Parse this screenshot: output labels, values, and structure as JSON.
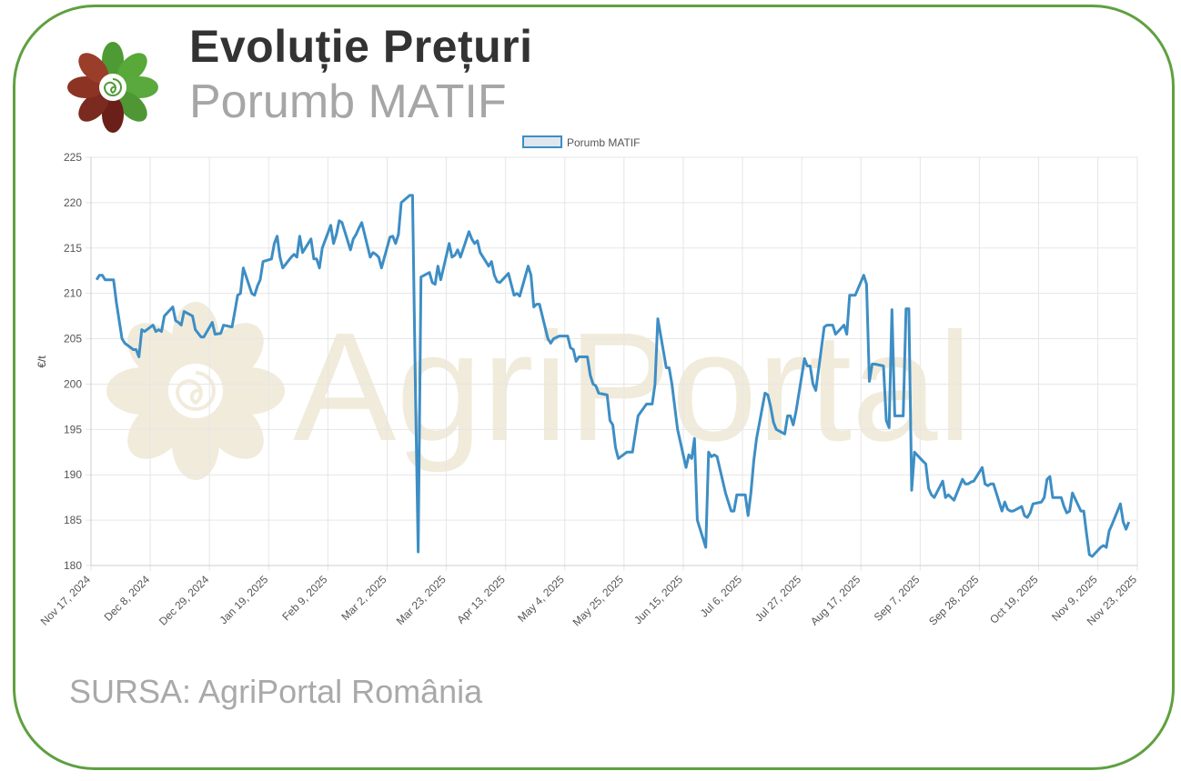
{
  "header": {
    "title": "Evoluție Prețuri",
    "subtitle": "Porumb MATIF"
  },
  "footer": {
    "source": "SURSA: AgriPortal România"
  },
  "watermark": {
    "text": "AgriPortal"
  },
  "colors": {
    "frame": "#5fa040",
    "line": "#3d8ec4",
    "legend_fill": "#dfe6ee",
    "grid": "#e6e6e6",
    "watermark": "#efe8d5"
  },
  "chart_data": {
    "type": "line",
    "ylabel": "€/t",
    "ylim": [
      180,
      225
    ],
    "yticks": [
      180,
      185,
      190,
      195,
      200,
      205,
      210,
      215,
      220,
      225
    ],
    "xlim": [
      "2024-11-17",
      "2025-11-23"
    ],
    "xticks": [
      "Nov 17, 2024",
      "Dec 8, 2024",
      "Dec 29, 2024",
      "Jan 19, 2025",
      "Feb 9, 2025",
      "Mar 2, 2025",
      "Mar 23, 2025",
      "Apr 13, 2025",
      "May 4, 2025",
      "May 25, 2025",
      "Jun 15, 2025",
      "Jul 6, 2025",
      "Jul 27, 2025",
      "Aug 17, 2025",
      "Sep 7, 2025",
      "Sep 28, 2025",
      "Oct 19, 2025",
      "Nov 9, 2025",
      "Nov 23, 2025"
    ],
    "grid": true,
    "legend": "top-center",
    "series": [
      {
        "name": "Porumb MATIF",
        "points": [
          [
            "2024-11-19",
            211.5
          ],
          [
            "2024-11-20",
            212
          ],
          [
            "2024-11-21",
            212
          ],
          [
            "2024-11-22",
            211.5
          ],
          [
            "2024-11-25",
            211.5
          ],
          [
            "2024-11-26",
            209
          ],
          [
            "2024-11-27",
            207
          ],
          [
            "2024-11-28",
            205
          ],
          [
            "2024-11-29",
            204.5
          ],
          [
            "2024-12-02",
            203.8
          ],
          [
            "2024-12-03",
            203.8
          ],
          [
            "2024-12-04",
            203
          ],
          [
            "2024-12-05",
            206
          ],
          [
            "2024-12-06",
            205.8
          ],
          [
            "2024-12-09",
            206.5
          ],
          [
            "2024-12-10",
            205.8
          ],
          [
            "2024-12-11",
            206
          ],
          [
            "2024-12-12",
            205.8
          ],
          [
            "2024-12-13",
            207.5
          ],
          [
            "2024-12-16",
            208.5
          ],
          [
            "2024-12-17",
            207
          ],
          [
            "2024-12-18",
            206.8
          ],
          [
            "2024-12-19",
            206.5
          ],
          [
            "2024-12-20",
            208
          ],
          [
            "2024-12-23",
            207.5
          ],
          [
            "2024-12-24",
            206
          ],
          [
            "2024-12-26",
            205.2
          ],
          [
            "2024-12-27",
            205.2
          ],
          [
            "2024-12-30",
            206.8
          ],
          [
            "2024-12-31",
            205.5
          ],
          [
            "2025-01-02",
            205.6
          ],
          [
            "2025-01-03",
            206.5
          ],
          [
            "2025-01-06",
            206.3
          ],
          [
            "2025-01-07",
            208
          ],
          [
            "2025-01-08",
            209.8
          ],
          [
            "2025-01-09",
            210
          ],
          [
            "2025-01-10",
            212.8
          ],
          [
            "2025-01-13",
            210
          ],
          [
            "2025-01-14",
            209.8
          ],
          [
            "2025-01-15",
            210.8
          ],
          [
            "2025-01-16",
            211.5
          ],
          [
            "2025-01-17",
            213.5
          ],
          [
            "2025-01-20",
            213.8
          ],
          [
            "2025-01-21",
            215.5
          ],
          [
            "2025-01-22",
            216.3
          ],
          [
            "2025-01-23",
            214
          ],
          [
            "2025-01-24",
            212.8
          ],
          [
            "2025-01-27",
            214
          ],
          [
            "2025-01-28",
            214.3
          ],
          [
            "2025-01-29",
            214
          ],
          [
            "2025-01-30",
            216.3
          ],
          [
            "2025-01-31",
            214.5
          ],
          [
            "2025-02-03",
            216
          ],
          [
            "2025-02-04",
            213.8
          ],
          [
            "2025-02-05",
            213.8
          ],
          [
            "2025-02-06",
            212.8
          ],
          [
            "2025-02-07",
            215
          ],
          [
            "2025-02-10",
            217.5
          ],
          [
            "2025-02-11",
            215.5
          ],
          [
            "2025-02-12",
            216.5
          ],
          [
            "2025-02-13",
            218
          ],
          [
            "2025-02-14",
            217.8
          ],
          [
            "2025-02-17",
            214.8
          ],
          [
            "2025-02-18",
            216
          ],
          [
            "2025-02-19",
            216.5
          ],
          [
            "2025-02-20",
            217.2
          ],
          [
            "2025-02-21",
            217.8
          ],
          [
            "2025-02-24",
            214
          ],
          [
            "2025-02-25",
            214.5
          ],
          [
            "2025-02-26",
            214.3
          ],
          [
            "2025-02-27",
            214
          ],
          [
            "2025-02-28",
            212.8
          ],
          [
            "2025-03-03",
            216.2
          ],
          [
            "2025-03-04",
            216.3
          ],
          [
            "2025-03-05",
            215.5
          ],
          [
            "2025-03-06",
            216.5
          ],
          [
            "2025-03-07",
            220
          ],
          [
            "2025-03-10",
            220.8
          ],
          [
            "2025-03-11",
            220.8
          ],
          [
            "2025-03-12",
            200
          ],
          [
            "2025-03-13",
            181.5
          ],
          [
            "2025-03-14",
            211.8
          ],
          [
            "2025-03-17",
            212.3
          ],
          [
            "2025-03-18",
            211.2
          ],
          [
            "2025-03-19",
            211
          ],
          [
            "2025-03-20",
            213
          ],
          [
            "2025-03-21",
            211.5
          ],
          [
            "2025-03-24",
            215.5
          ],
          [
            "2025-03-25",
            214
          ],
          [
            "2025-03-26",
            214.2
          ],
          [
            "2025-03-27",
            214.8
          ],
          [
            "2025-03-28",
            214
          ],
          [
            "2025-03-31",
            216.8
          ],
          [
            "2025-04-01",
            216
          ],
          [
            "2025-04-02",
            215.5
          ],
          [
            "2025-04-03",
            215.8
          ],
          [
            "2025-04-04",
            214.5
          ],
          [
            "2025-04-07",
            213
          ],
          [
            "2025-04-08",
            213.5
          ],
          [
            "2025-04-09",
            212
          ],
          [
            "2025-04-10",
            211.3
          ],
          [
            "2025-04-11",
            211.2
          ],
          [
            "2025-04-14",
            212.2
          ],
          [
            "2025-04-15",
            211
          ],
          [
            "2025-04-16",
            209.8
          ],
          [
            "2025-04-17",
            210
          ],
          [
            "2025-04-18",
            209.7
          ],
          [
            "2025-04-21",
            213
          ],
          [
            "2025-04-22",
            212
          ],
          [
            "2025-04-23",
            208.5
          ],
          [
            "2025-04-24",
            208.8
          ],
          [
            "2025-04-25",
            208.8
          ],
          [
            "2025-04-28",
            205
          ],
          [
            "2025-04-29",
            204.5
          ],
          [
            "2025-04-30",
            205
          ],
          [
            "2025-05-02",
            205.3
          ],
          [
            "2025-05-05",
            205.3
          ],
          [
            "2025-05-06",
            204
          ],
          [
            "2025-05-07",
            203.8
          ],
          [
            "2025-05-08",
            202.5
          ],
          [
            "2025-05-09",
            203
          ],
          [
            "2025-05-12",
            203
          ],
          [
            "2025-05-13",
            201
          ],
          [
            "2025-05-14",
            200
          ],
          [
            "2025-05-15",
            199.8
          ],
          [
            "2025-05-16",
            199
          ],
          [
            "2025-05-19",
            198.8
          ],
          [
            "2025-05-20",
            196
          ],
          [
            "2025-05-21",
            195.5
          ],
          [
            "2025-05-22",
            193
          ],
          [
            "2025-05-23",
            191.8
          ],
          [
            "2025-05-26",
            192.5
          ],
          [
            "2025-05-27",
            192.5
          ],
          [
            "2025-05-28",
            192.5
          ],
          [
            "2025-05-29",
            194.5
          ],
          [
            "2025-05-30",
            196.5
          ],
          [
            "2025-06-02",
            197.8
          ],
          [
            "2025-06-03",
            197.8
          ],
          [
            "2025-06-04",
            197.8
          ],
          [
            "2025-06-05",
            200
          ],
          [
            "2025-06-06",
            207.2
          ],
          [
            "2025-06-09",
            201.8
          ],
          [
            "2025-06-10",
            201.8
          ],
          [
            "2025-06-11",
            200
          ],
          [
            "2025-06-12",
            197.5
          ],
          [
            "2025-06-13",
            195
          ],
          [
            "2025-06-16",
            190.8
          ],
          [
            "2025-06-17",
            192.2
          ],
          [
            "2025-06-18",
            191.8
          ],
          [
            "2025-06-19",
            194
          ],
          [
            "2025-06-20",
            185
          ],
          [
            "2025-06-23",
            182
          ],
          [
            "2025-06-24",
            192.5
          ],
          [
            "2025-06-25",
            192
          ],
          [
            "2025-06-26",
            192.2
          ],
          [
            "2025-06-27",
            192
          ],
          [
            "2025-06-30",
            188
          ],
          [
            "2025-07-01",
            187
          ],
          [
            "2025-07-02",
            186
          ],
          [
            "2025-07-03",
            186
          ],
          [
            "2025-07-04",
            187.8
          ],
          [
            "2025-07-07",
            187.8
          ],
          [
            "2025-07-08",
            185.5
          ],
          [
            "2025-07-09",
            188
          ],
          [
            "2025-07-10",
            191.5
          ],
          [
            "2025-07-11",
            194
          ],
          [
            "2025-07-14",
            199
          ],
          [
            "2025-07-15",
            198.8
          ],
          [
            "2025-07-16",
            197.5
          ],
          [
            "2025-07-17",
            195.8
          ],
          [
            "2025-07-18",
            195
          ],
          [
            "2025-07-21",
            194.5
          ],
          [
            "2025-07-22",
            196.5
          ],
          [
            "2025-07-23",
            196.5
          ],
          [
            "2025-07-24",
            195.5
          ],
          [
            "2025-07-25",
            197
          ],
          [
            "2025-07-28",
            202.8
          ],
          [
            "2025-07-29",
            202
          ],
          [
            "2025-07-30",
            202
          ],
          [
            "2025-07-31",
            200
          ],
          [
            "2025-08-01",
            199.3
          ],
          [
            "2025-08-04",
            206.3
          ],
          [
            "2025-08-05",
            206.5
          ],
          [
            "2025-08-06",
            206.5
          ],
          [
            "2025-08-07",
            206.5
          ],
          [
            "2025-08-08",
            205.5
          ],
          [
            "2025-08-11",
            206.5
          ],
          [
            "2025-08-12",
            205.5
          ],
          [
            "2025-08-13",
            209.8
          ],
          [
            "2025-08-14",
            209.8
          ],
          [
            "2025-08-15",
            209.8
          ],
          [
            "2025-08-18",
            212
          ],
          [
            "2025-08-19",
            211
          ],
          [
            "2025-08-20",
            200.3
          ],
          [
            "2025-08-21",
            202.2
          ],
          [
            "2025-08-22",
            202.2
          ],
          [
            "2025-08-25",
            202
          ],
          [
            "2025-08-26",
            196
          ],
          [
            "2025-08-27",
            195.2
          ],
          [
            "2025-08-28",
            208.2
          ],
          [
            "2025-08-29",
            196.5
          ],
          [
            "2025-09-01",
            196.5
          ],
          [
            "2025-09-02",
            208.3
          ],
          [
            "2025-09-03",
            208.3
          ],
          [
            "2025-09-04",
            188.3
          ],
          [
            "2025-09-05",
            192.5
          ],
          [
            "2025-09-08",
            191.5
          ],
          [
            "2025-09-09",
            191.2
          ],
          [
            "2025-09-10",
            188.5
          ],
          [
            "2025-09-11",
            187.8
          ],
          [
            "2025-09-12",
            187.5
          ],
          [
            "2025-09-15",
            189.3
          ],
          [
            "2025-09-16",
            187.5
          ],
          [
            "2025-09-17",
            187.8
          ],
          [
            "2025-09-18",
            187.5
          ],
          [
            "2025-09-19",
            187.2
          ],
          [
            "2025-09-22",
            189.5
          ],
          [
            "2025-09-23",
            189
          ],
          [
            "2025-09-24",
            189
          ],
          [
            "2025-09-25",
            189.2
          ],
          [
            "2025-09-26",
            189.3
          ],
          [
            "2025-09-29",
            190.8
          ],
          [
            "2025-09-30",
            189
          ],
          [
            "2025-10-01",
            188.8
          ],
          [
            "2025-10-02",
            189
          ],
          [
            "2025-10-03",
            189
          ],
          [
            "2025-10-06",
            186
          ],
          [
            "2025-10-07",
            187
          ],
          [
            "2025-10-08",
            186.2
          ],
          [
            "2025-10-09",
            186
          ],
          [
            "2025-10-10",
            186
          ],
          [
            "2025-10-13",
            186.5
          ],
          [
            "2025-10-14",
            185.5
          ],
          [
            "2025-10-15",
            185.3
          ],
          [
            "2025-10-16",
            185.8
          ],
          [
            "2025-10-17",
            186.8
          ],
          [
            "2025-10-20",
            187
          ],
          [
            "2025-10-21",
            187.5
          ],
          [
            "2025-10-22",
            189.5
          ],
          [
            "2025-10-23",
            189.8
          ],
          [
            "2025-10-24",
            187.5
          ],
          [
            "2025-10-27",
            187.5
          ],
          [
            "2025-10-28",
            186.5
          ],
          [
            "2025-10-29",
            185.8
          ],
          [
            "2025-10-30",
            186
          ],
          [
            "2025-10-31",
            188
          ],
          [
            "2025-11-03",
            186
          ],
          [
            "2025-11-04",
            186
          ],
          [
            "2025-11-05",
            183.5
          ],
          [
            "2025-11-06",
            181.2
          ],
          [
            "2025-11-07",
            181
          ],
          [
            "2025-11-10",
            182
          ],
          [
            "2025-11-11",
            182.2
          ],
          [
            "2025-11-12",
            182
          ],
          [
            "2025-11-13",
            183.8
          ],
          [
            "2025-11-14",
            184.5
          ],
          [
            "2025-11-17",
            186.8
          ],
          [
            "2025-11-18",
            184.8
          ],
          [
            "2025-11-19",
            184
          ],
          [
            "2025-11-20",
            184.8
          ]
        ]
      }
    ]
  }
}
